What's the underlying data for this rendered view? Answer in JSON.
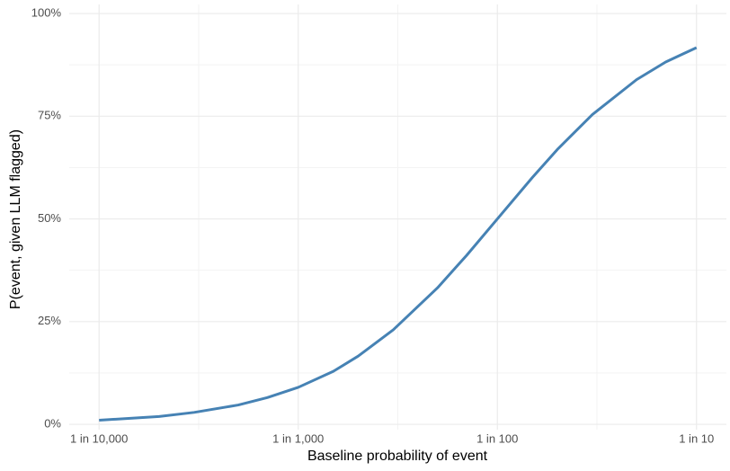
{
  "chart_data": {
    "type": "line",
    "x_label": "Baseline probability of event",
    "y_label": "P(event, given LLM flagged)",
    "x": [
      0.0001,
      0.0002,
      0.0003,
      0.0005,
      0.0007,
      0.001,
      0.0015,
      0.002,
      0.003,
      0.005,
      0.007,
      0.01,
      0.015,
      0.02,
      0.03,
      0.05,
      0.07,
      0.1
    ],
    "series": [
      {
        "color": "#4682b4",
        "values": [
          1.0,
          1.9,
          2.9,
          4.7,
          6.5,
          9.0,
          12.9,
          16.6,
          23.0,
          33.2,
          41.1,
          50.0,
          60.1,
          66.9,
          75.4,
          83.9,
          88.2,
          91.7
        ]
      }
    ],
    "x_log": true,
    "xlim": [
      7.08e-05,
      0.1413
    ],
    "xticks": [
      {
        "value": 0.0001,
        "label": "1 in 10,000"
      },
      {
        "value": 0.001,
        "label": "1 in 1,000"
      },
      {
        "value": 0.01,
        "label": "1 in 100"
      },
      {
        "value": 0.1,
        "label": "1 in 10"
      }
    ],
    "xminor": [
      0.0003162,
      0.003162,
      0.03162
    ],
    "ylim": [
      -1.3,
      102.2
    ],
    "yticks": [
      {
        "value": 0,
        "label": "0%"
      },
      {
        "value": 25,
        "label": "25%"
      },
      {
        "value": 50,
        "label": "50%"
      },
      {
        "value": 75,
        "label": "75%"
      },
      {
        "value": 100,
        "label": "100%"
      }
    ],
    "yminor": [
      12.5,
      37.5,
      62.5,
      87.5
    ],
    "grid": true
  }
}
